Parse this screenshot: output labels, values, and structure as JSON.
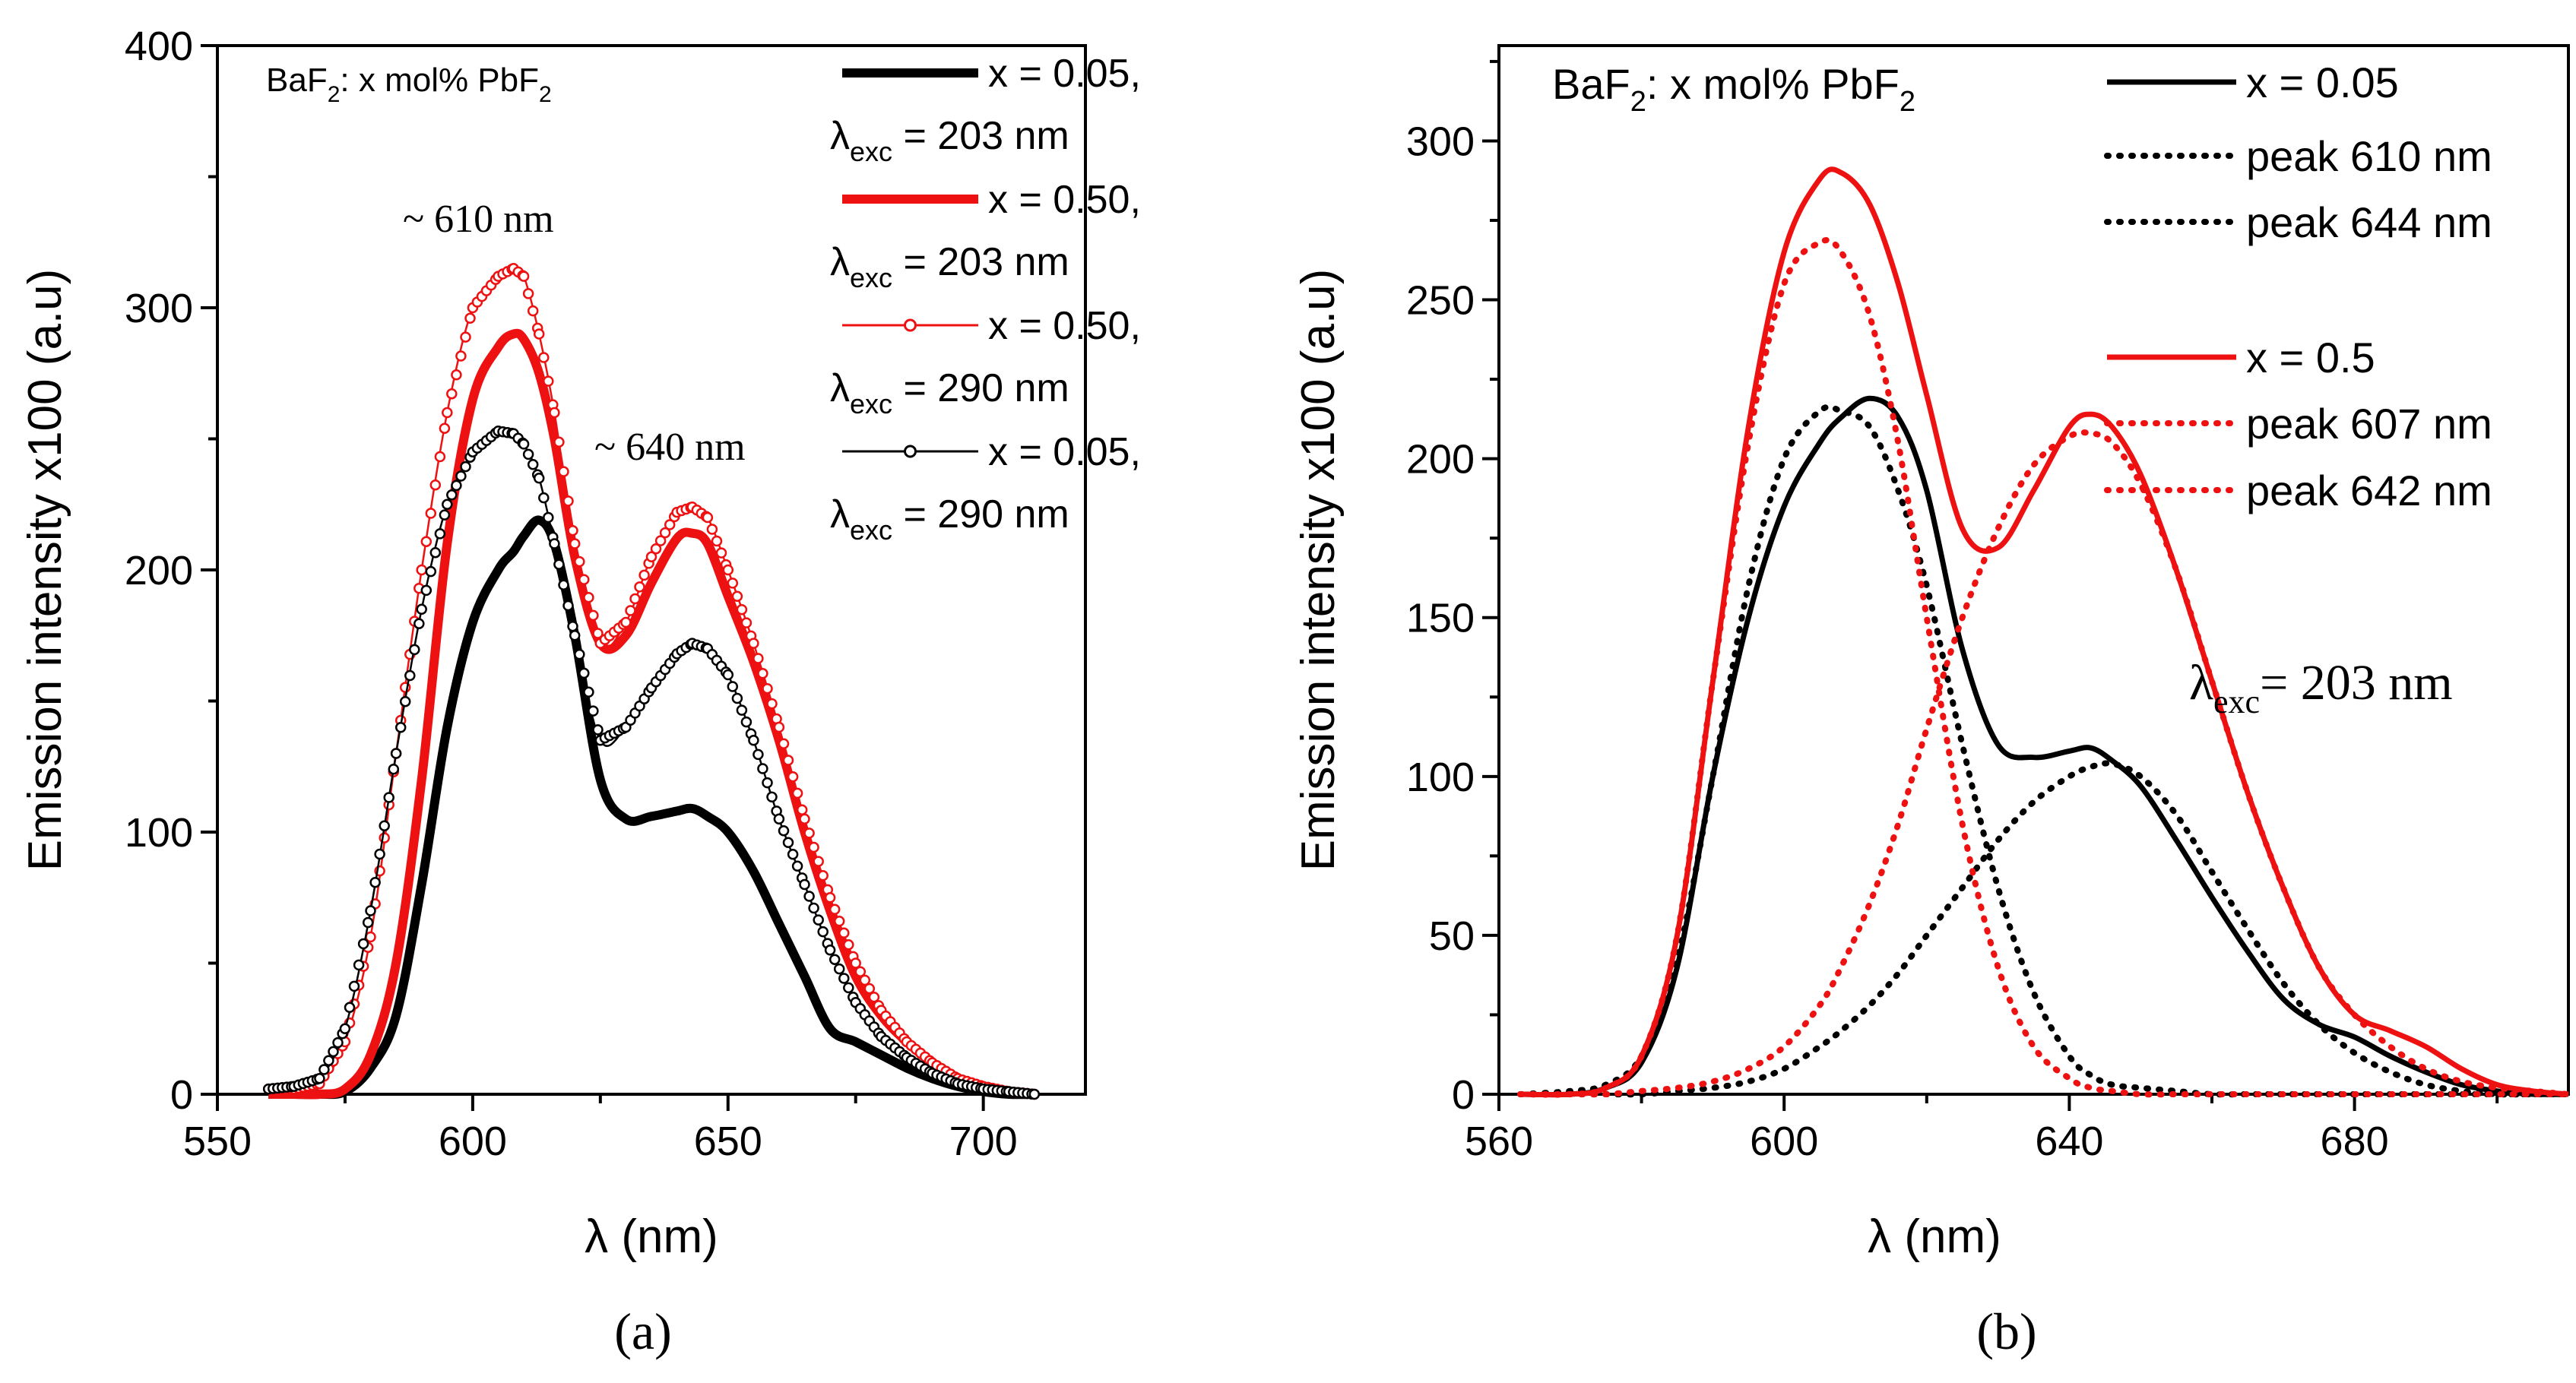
{
  "chart_data": [
    {
      "type": "line",
      "panel_label": "(a)",
      "xlabel": "λ (nm)",
      "ylabel": "Emission intensity x100 (a.u)",
      "xlim": [
        550,
        720
      ],
      "ylim": [
        0,
        400
      ],
      "xticks": [
        550,
        600,
        650,
        700
      ],
      "yticks": [
        0,
        100,
        200,
        300,
        400
      ],
      "grid": false,
      "legend_position": "top-right",
      "inset_title": {
        "base": "BaF",
        "sub1": "2",
        "mid": ": x mol% PbF",
        "sub2": "2"
      },
      "annotations": [
        "~ 610 nm",
        "~ 640 nm"
      ],
      "x": [
        560,
        565,
        570,
        575,
        580,
        585,
        590,
        595,
        600,
        605,
        608,
        610,
        613,
        616,
        620,
        625,
        630,
        635,
        640,
        643,
        646,
        650,
        655,
        660,
        665,
        670,
        675,
        680,
        685,
        690,
        695,
        700,
        705,
        710
      ],
      "series": [
        {
          "name": "x = 0.05,",
          "subtitle": {
            "prefix": "λ",
            "sub": "exc",
            "rest": " = 203 nm"
          },
          "color": "#000000",
          "style": "thick",
          "values": [
            0,
            0,
            0,
            1,
            10,
            30,
            80,
            140,
            180,
            200,
            207,
            213,
            219,
            210,
            175,
            120,
            105,
            106,
            108,
            109,
            106,
            100,
            85,
            65,
            45,
            25,
            20,
            15,
            10,
            6,
            3,
            1,
            0,
            0
          ]
        },
        {
          "name": "x = 0.50,",
          "subtitle": {
            "prefix": "λ",
            "sub": "exc",
            "rest": " = 203 nm"
          },
          "color": "#ee1111",
          "style": "thick",
          "values": [
            0,
            0,
            0,
            2,
            15,
            50,
            120,
            210,
            265,
            285,
            290,
            288,
            275,
            250,
            205,
            172,
            175,
            195,
            212,
            214,
            210,
            190,
            165,
            135,
            100,
            70,
            45,
            30,
            20,
            12,
            6,
            3,
            1,
            0
          ]
        },
        {
          "name": "x = 0.50,",
          "subtitle": {
            "prefix": "λ",
            "sub": "exc",
            "rest": " = 290 nm"
          },
          "color": "#ee1111",
          "style": "open-circle",
          "values": [
            2,
            2,
            4,
            20,
            60,
            130,
            200,
            260,
            300,
            312,
            315,
            312,
            290,
            260,
            210,
            172,
            180,
            205,
            222,
            224,
            220,
            200,
            172,
            140,
            105,
            75,
            50,
            32,
            20,
            12,
            6,
            3,
            1,
            0
          ]
        },
        {
          "name": "x = 0.05,",
          "subtitle": {
            "prefix": "λ",
            "sub": "exc",
            "rest": " = 290 nm"
          },
          "color": "#000000",
          "style": "open-circle",
          "values": [
            2,
            3,
            6,
            25,
            70,
            130,
            185,
            225,
            245,
            253,
            252,
            248,
            235,
            210,
            175,
            135,
            140,
            155,
            168,
            172,
            170,
            160,
            135,
            105,
            80,
            55,
            35,
            22,
            14,
            8,
            4,
            2,
            1,
            0
          ]
        }
      ]
    },
    {
      "type": "line",
      "panel_label": "(b)",
      "xlabel": "λ (nm)",
      "ylabel": "Emission intensity x100 (a.u)",
      "xlim": [
        560,
        710
      ],
      "ylim": [
        0,
        330
      ],
      "xticks": [
        560,
        600,
        640,
        680
      ],
      "yticks": [
        0,
        50,
        100,
        150,
        200,
        250,
        300
      ],
      "grid": false,
      "legend_position": "top-right",
      "inset_title": {
        "base": "BaF",
        "sub1": "2",
        "mid": ": x mol% PbF",
        "sub2": "2"
      },
      "annotation": {
        "prefix": "λ",
        "sub": "exc",
        "rest": "= 203 nm"
      },
      "x": [
        563,
        570,
        575,
        580,
        585,
        590,
        595,
        600,
        605,
        608,
        612,
        616,
        620,
        625,
        630,
        635,
        640,
        643,
        646,
        650,
        655,
        660,
        665,
        670,
        675,
        680,
        685,
        690,
        695,
        700,
        705,
        710
      ],
      "series": [
        {
          "name": "x = 0.05",
          "color": "#000000",
          "style": "solid",
          "values": [
            0,
            0,
            2,
            10,
            40,
            100,
            150,
            185,
            205,
            213,
            219,
            213,
            190,
            140,
            110,
            106,
            108,
            109,
            105,
            97,
            80,
            62,
            45,
            30,
            22,
            18,
            12,
            7,
            3,
            1,
            0,
            0
          ]
        },
        {
          "name": "peak 610 nm",
          "color": "#000000",
          "style": "dotted",
          "values": [
            0,
            1,
            3,
            12,
            42,
            100,
            160,
            200,
            215,
            215,
            210,
            190,
            160,
            110,
            65,
            32,
            12,
            6,
            3,
            2,
            1,
            0,
            0,
            0,
            0,
            0,
            0,
            0,
            0,
            0,
            0,
            0
          ]
        },
        {
          "name": "peak 644 nm",
          "color": "#000000",
          "style": "dotted",
          "values": [
            0,
            0,
            0,
            0,
            1,
            2,
            4,
            8,
            15,
            20,
            28,
            38,
            50,
            65,
            80,
            92,
            100,
            103,
            104,
            100,
            88,
            70,
            52,
            35,
            22,
            13,
            7,
            3,
            1,
            0,
            0,
            0
          ]
        },
        {
          "name": "x = 0.5",
          "color": "#ee1111",
          "style": "solid",
          "values": [
            0,
            0,
            2,
            12,
            50,
            130,
            210,
            265,
            288,
            290,
            280,
            255,
            220,
            178,
            172,
            190,
            210,
            214,
            210,
            195,
            165,
            130,
            95,
            65,
            40,
            25,
            20,
            15,
            8,
            3,
            1,
            0
          ]
        },
        {
          "name": "peak 607 nm",
          "color": "#ee1111",
          "style": "dotted",
          "values": [
            0,
            0,
            2,
            12,
            50,
            130,
            205,
            255,
            268,
            265,
            245,
            205,
            150,
            85,
            40,
            15,
            5,
            2,
            1,
            0,
            0,
            0,
            0,
            0,
            0,
            0,
            0,
            0,
            0,
            0,
            0,
            0
          ]
        },
        {
          "name": "peak 642 nm",
          "color": "#ee1111",
          "style": "dotted",
          "values": [
            0,
            0,
            0,
            1,
            2,
            4,
            8,
            15,
            28,
            40,
            60,
            85,
            115,
            150,
            178,
            198,
            207,
            208,
            205,
            192,
            165,
            130,
            95,
            65,
            40,
            25,
            15,
            8,
            4,
            2,
            1,
            0
          ]
        }
      ]
    }
  ]
}
